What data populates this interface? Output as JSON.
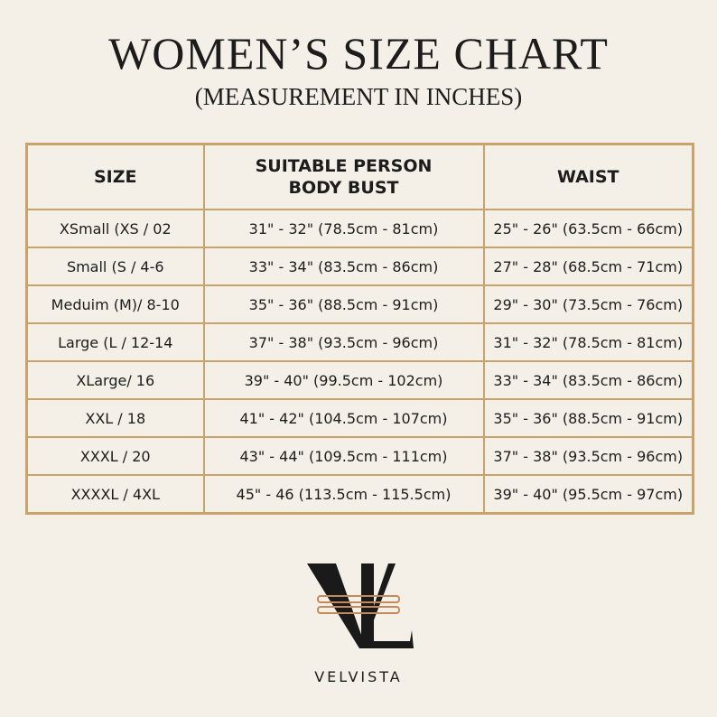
{
  "header": {
    "title": "WOMEN’S SIZE CHART",
    "subtitle": "(MEASUREMENT IN INCHES)"
  },
  "table": {
    "columns": [
      "SIZE",
      "SUITABLE PERSON BODY BUST",
      "WAIST"
    ],
    "rows": [
      [
        "XSmall (XS / 02",
        "31\" - 32\" (78.5cm - 81cm)",
        "25\" - 26\" (63.5cm - 66cm)"
      ],
      [
        "Small (S / 4-6",
        "33\" - 34\" (83.5cm - 86cm)",
        "27\" - 28\" (68.5cm - 71cm)"
      ],
      [
        "Meduim (M)/ 8-10",
        "35\" - 36\" (88.5cm - 91cm)",
        "29\" - 30\" (73.5cm - 76cm)"
      ],
      [
        "Large (L / 12-14",
        "37\" - 38\" (93.5cm - 96cm)",
        "31\" - 32\" (78.5cm - 81cm)"
      ],
      [
        "XLarge/ 16",
        "39\" - 40\" (99.5cm - 102cm)",
        "33\" - 34\" (83.5cm - 86cm)"
      ],
      [
        "XXL / 18",
        "41\" - 42\" (104.5cm - 107cm)",
        "35\" - 36\" (88.5cm - 91cm)"
      ],
      [
        "XXXL / 20",
        "43\" - 44\" (109.5cm - 111cm)",
        "37\" - 38\" (93.5cm - 96cm)"
      ],
      [
        "XXXXL / 4XL",
        "45\" - 46 (113.5cm - 115.5cm)",
        "39\" - 40\" (95.5cm - 97cm)"
      ]
    ]
  },
  "brand": {
    "name": "VELVISTA"
  }
}
